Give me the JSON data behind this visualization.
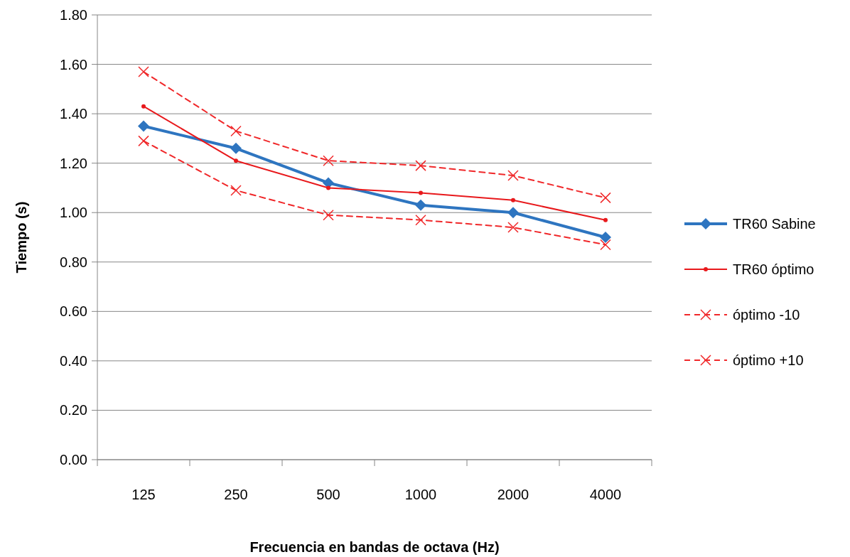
{
  "chart_data": {
    "type": "line",
    "xlabel": "Frecuencia en bandas de octava (Hz)",
    "ylabel": "Tiempo (s)",
    "categories": [
      "125",
      "250",
      "500",
      "1000",
      "2000",
      "4000"
    ],
    "ylim": [
      0,
      1.8
    ],
    "yticks": [
      {
        "value": 0,
        "label": "0.00"
      },
      {
        "value": 0.2,
        "label": "0.20"
      },
      {
        "value": 0.4,
        "label": "0.40"
      },
      {
        "value": 0.6,
        "label": "0.60"
      },
      {
        "value": 0.8,
        "label": "0.80"
      },
      {
        "value": 1,
        "label": "1.00"
      },
      {
        "value": 1.2,
        "label": "1.20"
      },
      {
        "value": 1.4,
        "label": "1.40"
      },
      {
        "value": 1.6,
        "label": "1.60"
      },
      {
        "value": 1.8,
        "label": "1.80"
      }
    ],
    "grid": "y",
    "legend": "right",
    "series": [
      {
        "name": "TR60 Sabine",
        "color": "#2e75c0",
        "marker": "diamond",
        "line_style": "solid",
        "values": [
          1.35,
          1.26,
          1.12,
          1.03,
          1.0,
          0.9
        ]
      },
      {
        "name": "TR60 óptimo",
        "color": "#e8191c",
        "marker": "circle",
        "line_style": "solid",
        "values": [
          1.43,
          1.21,
          1.1,
          1.08,
          1.05,
          0.97
        ]
      },
      {
        "name": "óptimo -10",
        "color": "#f0282a",
        "marker": "cross",
        "line_style": "dashed",
        "values": [
          1.29,
          1.09,
          0.99,
          0.97,
          0.94,
          0.87
        ]
      },
      {
        "name": "óptimo +10",
        "color": "#f0282a",
        "marker": "cross",
        "line_style": "dashed",
        "values": [
          1.57,
          1.33,
          1.21,
          1.19,
          1.15,
          1.06
        ]
      }
    ]
  }
}
